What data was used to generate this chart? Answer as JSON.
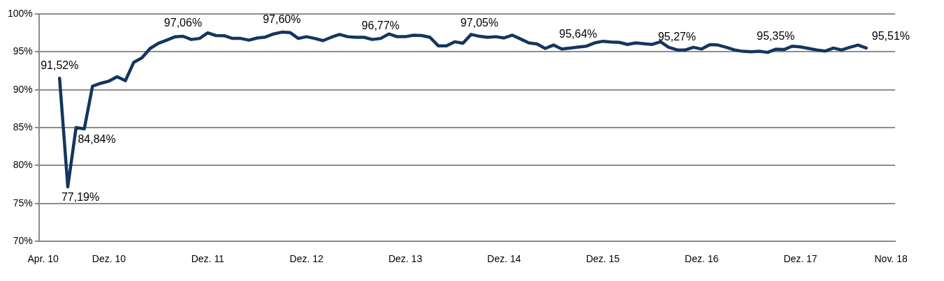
{
  "chart_data": {
    "type": "line",
    "categories": [
      "Apr. 10",
      null,
      null,
      null,
      null,
      null,
      null,
      null,
      "Dez. 10",
      null,
      null,
      null,
      null,
      null,
      null,
      null,
      null,
      null,
      null,
      null,
      "Dez. 11",
      null,
      null,
      null,
      null,
      null,
      null,
      null,
      null,
      null,
      null,
      null,
      "Dez. 12",
      null,
      null,
      null,
      null,
      null,
      null,
      null,
      null,
      null,
      null,
      null,
      "Dez. 13",
      null,
      null,
      null,
      null,
      null,
      null,
      null,
      null,
      null,
      null,
      null,
      "Dez. 14",
      null,
      null,
      null,
      null,
      null,
      null,
      null,
      null,
      null,
      null,
      null,
      "Dez. 15",
      null,
      null,
      null,
      null,
      null,
      null,
      null,
      null,
      null,
      null,
      null,
      "Dez. 16",
      null,
      null,
      null,
      null,
      null,
      null,
      null,
      null,
      null,
      null,
      null,
      "Dez. 17",
      null,
      null,
      null,
      null,
      null,
      null,
      null,
      null,
      null,
      null,
      "Nov. 18"
    ],
    "series": [
      {
        "color": "#14365e",
        "values": [
          null,
          null,
          91.52,
          77.19,
          85.0,
          84.84,
          90.47,
          90.85,
          91.14,
          91.73,
          91.2,
          93.6,
          94.2,
          95.45,
          96.13,
          96.54,
          96.98,
          97.06,
          96.63,
          96.77,
          97.5,
          97.15,
          97.13,
          96.77,
          96.77,
          96.54,
          96.83,
          96.95,
          97.36,
          97.6,
          97.55,
          96.77,
          97.0,
          96.77,
          96.48,
          96.92,
          97.3,
          97.0,
          96.92,
          96.92,
          96.63,
          96.77,
          97.36,
          97.0,
          97.0,
          97.2,
          97.15,
          96.92,
          95.8,
          95.8,
          96.33,
          96.13,
          97.3,
          97.05,
          96.92,
          97.0,
          96.83,
          97.2,
          96.7,
          96.18,
          96.04,
          95.45,
          95.9,
          95.37,
          95.5,
          95.64,
          95.75,
          96.18,
          96.4,
          96.3,
          96.25,
          95.98,
          96.18,
          96.07,
          95.98,
          96.33,
          95.6,
          95.27,
          95.25,
          95.6,
          95.37,
          95.95,
          95.9,
          95.6,
          95.25,
          95.07,
          95.0,
          95.07,
          94.93,
          95.35,
          95.3,
          95.75,
          95.66,
          95.45,
          95.25,
          95.1,
          95.5,
          95.25,
          95.6,
          95.9,
          95.51,
          null,
          null,
          null
        ],
        "value_labels": [
          null,
          null,
          "91,52%",
          "77,19%",
          null,
          "84,84%",
          null,
          null,
          null,
          null,
          null,
          null,
          null,
          null,
          null,
          null,
          null,
          "97,06%",
          null,
          null,
          null,
          null,
          null,
          null,
          null,
          null,
          null,
          null,
          null,
          "97,60%",
          null,
          null,
          null,
          null,
          null,
          null,
          null,
          null,
          null,
          null,
          null,
          "96,77%",
          null,
          null,
          null,
          null,
          null,
          null,
          null,
          null,
          null,
          null,
          null,
          "97,05%",
          null,
          null,
          null,
          null,
          null,
          null,
          null,
          null,
          null,
          null,
          null,
          "95,64%",
          null,
          null,
          null,
          null,
          null,
          null,
          null,
          null,
          null,
          null,
          null,
          "95,27%",
          null,
          null,
          null,
          null,
          null,
          null,
          null,
          null,
          null,
          null,
          null,
          "95,35%",
          null,
          null,
          null,
          null,
          null,
          null,
          null,
          null,
          null,
          null,
          "95,51%",
          null,
          null,
          null
        ]
      }
    ],
    "ylim": [
      70,
      100
    ],
    "yticks": [
      {
        "value": 70,
        "label": "70%"
      },
      {
        "value": 75,
        "label": "75%"
      },
      {
        "value": 80,
        "label": "80%"
      },
      {
        "value": 85,
        "label": "85%"
      },
      {
        "value": 90,
        "label": "90%"
      },
      {
        "value": 95,
        "label": "95%"
      },
      {
        "value": 100,
        "label": "100%"
      }
    ],
    "grid": "y",
    "legend": false,
    "marker": "none",
    "line_style": "solid"
  }
}
